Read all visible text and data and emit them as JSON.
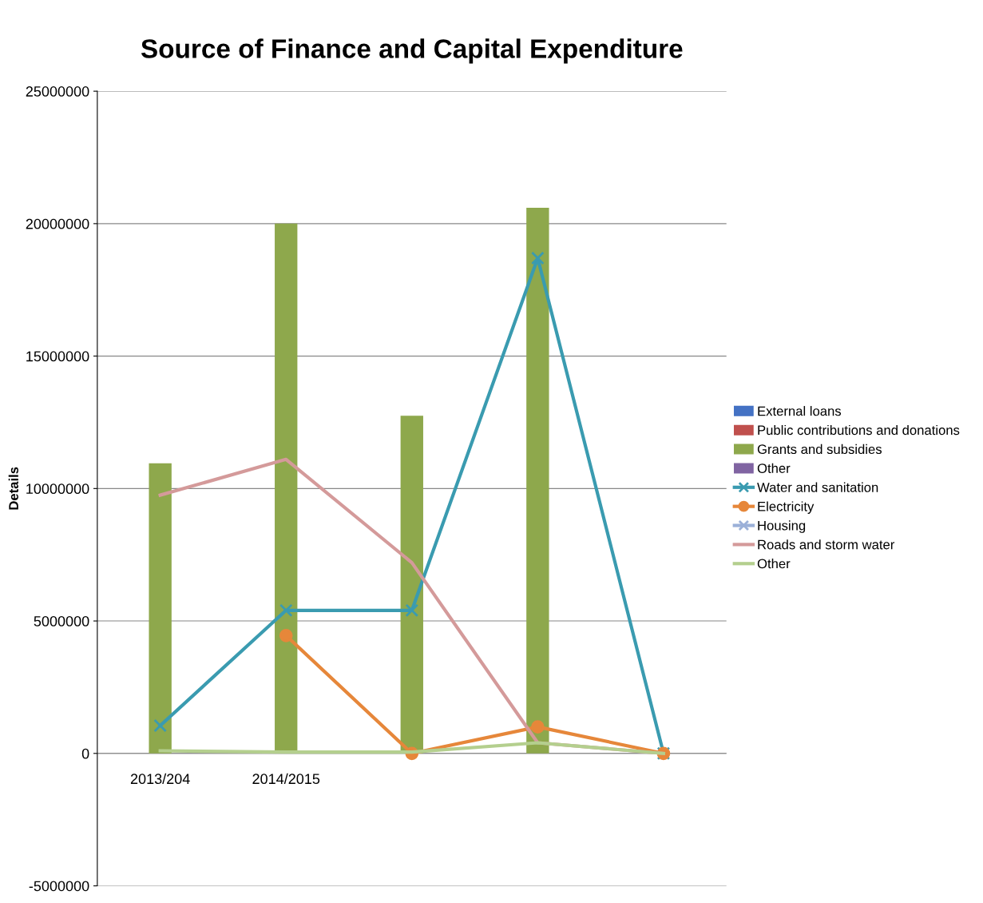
{
  "chart_data": {
    "type": "bar",
    "title": "Source of Finance and Capital Expenditure",
    "ylabel": "Details",
    "categories": [
      "2013/204",
      "2014/2015",
      null,
      null,
      null
    ],
    "series": [
      {
        "name": "External loans",
        "color": "#4472c4",
        "values": [
          null,
          null,
          null,
          null,
          null
        ]
      },
      {
        "name": "Public contributions and donations",
        "color": "#c0504d",
        "values": [
          null,
          null,
          null,
          null,
          null
        ]
      },
      {
        "name": "Grants and subsidies",
        "color": "#8ea84c",
        "values": [
          10950000,
          20000000,
          12750000,
          20600000,
          null
        ]
      },
      {
        "name": "Other",
        "color": "#8064a2",
        "values": [
          null,
          null,
          null,
          null,
          null
        ]
      },
      {
        "name": "Water and sanitation",
        "type": "line",
        "color": "#3a9bb0",
        "marker": "cross",
        "values": [
          1050000,
          5400000,
          5400000,
          18700000,
          0
        ]
      },
      {
        "name": "Electricity",
        "type": "line",
        "color": "#e6873a",
        "marker": "circle",
        "values": [
          null,
          4450000,
          0,
          1000000,
          0
        ]
      },
      {
        "name": "Housing",
        "type": "line",
        "color": "#9bb0d8",
        "marker": "cross",
        "values": [
          null,
          null,
          null,
          null,
          null
        ]
      },
      {
        "name": "Roads and storm water",
        "type": "line",
        "color": "#d49a9a",
        "values": [
          9750000,
          11100000,
          7200000,
          400000,
          0
        ]
      },
      {
        "name": "Other",
        "type": "line",
        "color": "#b4cf8e",
        "values": [
          100000,
          50000,
          50000,
          400000,
          0
        ]
      }
    ],
    "ylim": [
      -5000000,
      25000000
    ],
    "yticks": [
      -5000000,
      0,
      5000000,
      10000000,
      15000000,
      20000000,
      25000000
    ],
    "grid": "y",
    "legend": "right"
  }
}
